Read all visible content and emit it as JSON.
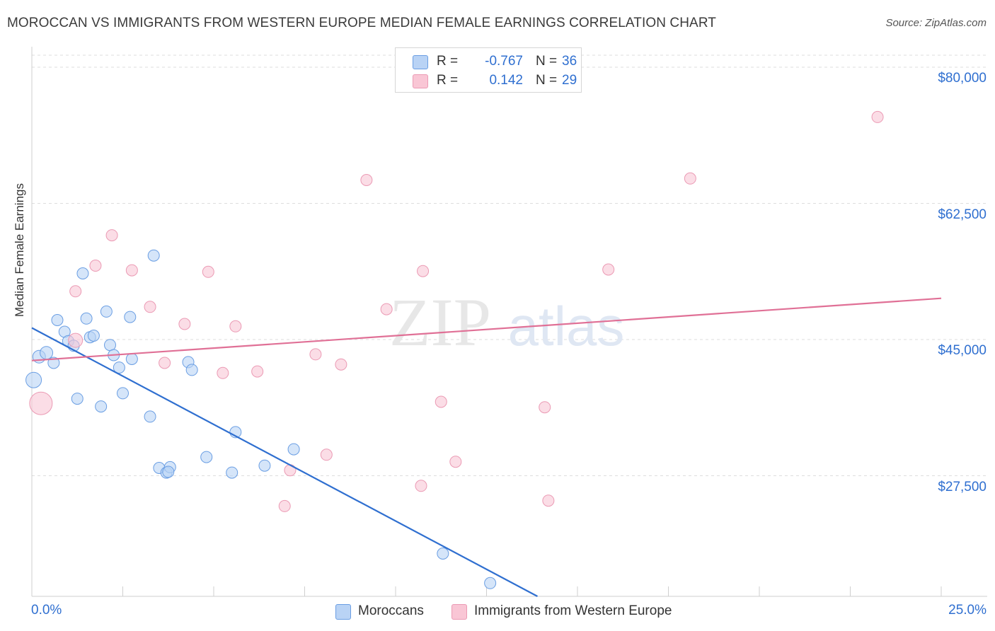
{
  "title": "MOROCCAN VS IMMIGRANTS FROM WESTERN EUROPE MEDIAN FEMALE EARNINGS CORRELATION CHART",
  "source": "Source: ZipAtlas.com",
  "watermark": {
    "part1": "ZIP",
    "part2": "atlas"
  },
  "colors": {
    "blue": "#2f6fd0",
    "blue_fill": "#b9d3f5",
    "blue_stroke": "#6a9ee3",
    "pink": "#e07096",
    "pink_fill": "#f9c6d5",
    "pink_stroke": "#eb9ab4",
    "grid": "#dddddd"
  },
  "legend": {
    "rows": [
      {
        "r_label": "R =",
        "r_value": "-0.767",
        "n_label": "N =",
        "n_value": "36"
      },
      {
        "r_label": "R =",
        "r_value": "0.142",
        "n_label": "N =",
        "n_value": "29"
      }
    ]
  },
  "bottom_legend": {
    "series1": "Moroccans",
    "series2": "Immigrants from Western Europe"
  },
  "chart_data": {
    "type": "scatter",
    "title": "MOROCCAN VS IMMIGRANTS FROM WESTERN EUROPE MEDIAN FEMALE EARNINGS CORRELATION CHART",
    "xlabel": "",
    "ylabel": "Median Female Earnings",
    "xlim": [
      0,
      25
    ],
    "ylim": [
      12000,
      83000
    ],
    "x_tick_labels": [
      "0.0%",
      "25.0%"
    ],
    "y_ticks": [
      27500,
      45000,
      62500,
      80000
    ],
    "y_tick_labels": [
      "$27,500",
      "$45,000",
      "$62,500",
      "$80,000"
    ],
    "series": [
      {
        "name": "Moroccans",
        "color": "blue",
        "trend": {
          "x": [
            0,
            13.9
          ],
          "y": [
            46500,
            12000
          ]
        },
        "points": [
          {
            "x": 0.05,
            "y": 39800,
            "r": 11
          },
          {
            "x": 0.2,
            "y": 42800,
            "r": 9
          },
          {
            "x": 0.4,
            "y": 43300,
            "r": 9
          },
          {
            "x": 0.6,
            "y": 42000,
            "r": 8
          },
          {
            "x": 0.7,
            "y": 47500,
            "r": 8
          },
          {
            "x": 0.9,
            "y": 46000,
            "r": 8
          },
          {
            "x": 1.0,
            "y": 44800,
            "r": 8
          },
          {
            "x": 1.15,
            "y": 44200,
            "r": 8
          },
          {
            "x": 1.25,
            "y": 37400,
            "r": 8
          },
          {
            "x": 1.4,
            "y": 53500,
            "r": 8
          },
          {
            "x": 1.5,
            "y": 47700,
            "r": 8
          },
          {
            "x": 1.6,
            "y": 45300,
            "r": 8
          },
          {
            "x": 1.7,
            "y": 45500,
            "r": 8
          },
          {
            "x": 1.9,
            "y": 36400,
            "r": 8
          },
          {
            "x": 2.05,
            "y": 48600,
            "r": 8
          },
          {
            "x": 2.15,
            "y": 44300,
            "r": 8
          },
          {
            "x": 2.25,
            "y": 43000,
            "r": 8
          },
          {
            "x": 2.4,
            "y": 41400,
            "r": 8
          },
          {
            "x": 2.5,
            "y": 38100,
            "r": 8
          },
          {
            "x": 2.7,
            "y": 47900,
            "r": 8
          },
          {
            "x": 2.75,
            "y": 42500,
            "r": 8
          },
          {
            "x": 3.25,
            "y": 35100,
            "r": 8
          },
          {
            "x": 3.35,
            "y": 55800,
            "r": 8
          },
          {
            "x": 3.5,
            "y": 28500,
            "r": 8
          },
          {
            "x": 3.7,
            "y": 27900,
            "r": 8
          },
          {
            "x": 3.8,
            "y": 28600,
            "r": 8
          },
          {
            "x": 4.3,
            "y": 42100,
            "r": 8
          },
          {
            "x": 4.4,
            "y": 41100,
            "r": 8
          },
          {
            "x": 4.8,
            "y": 29900,
            "r": 8
          },
          {
            "x": 5.5,
            "y": 27900,
            "r": 8
          },
          {
            "x": 5.6,
            "y": 33100,
            "r": 8
          },
          {
            "x": 6.4,
            "y": 28800,
            "r": 8
          },
          {
            "x": 7.2,
            "y": 30900,
            "r": 8
          },
          {
            "x": 11.3,
            "y": 17500,
            "r": 8
          },
          {
            "x": 12.6,
            "y": 13700,
            "r": 8
          },
          {
            "x": 3.75,
            "y": 28000,
            "r": 8
          }
        ]
      },
      {
        "name": "Immigrants from Western Europe",
        "color": "pink",
        "trend": {
          "x": [
            0,
            25
          ],
          "y": [
            42300,
            50300
          ]
        },
        "points": [
          {
            "x": 0.25,
            "y": 36800,
            "r": 16
          },
          {
            "x": 1.2,
            "y": 44900,
            "r": 10
          },
          {
            "x": 1.2,
            "y": 51200,
            "r": 8
          },
          {
            "x": 1.75,
            "y": 54500,
            "r": 8
          },
          {
            "x": 2.2,
            "y": 58400,
            "r": 8
          },
          {
            "x": 2.75,
            "y": 53900,
            "r": 8
          },
          {
            "x": 3.25,
            "y": 49200,
            "r": 8
          },
          {
            "x": 3.65,
            "y": 42000,
            "r": 8
          },
          {
            "x": 4.2,
            "y": 47000,
            "r": 8
          },
          {
            "x": 4.85,
            "y": 53700,
            "r": 8
          },
          {
            "x": 5.25,
            "y": 40700,
            "r": 8
          },
          {
            "x": 5.6,
            "y": 46700,
            "r": 8
          },
          {
            "x": 6.2,
            "y": 40900,
            "r": 8
          },
          {
            "x": 7.1,
            "y": 28200,
            "r": 8
          },
          {
            "x": 6.95,
            "y": 23600,
            "r": 8
          },
          {
            "x": 7.8,
            "y": 43100,
            "r": 8
          },
          {
            "x": 8.1,
            "y": 30200,
            "r": 8
          },
          {
            "x": 8.5,
            "y": 41800,
            "r": 8
          },
          {
            "x": 9.2,
            "y": 65500,
            "r": 8
          },
          {
            "x": 9.75,
            "y": 48900,
            "r": 8
          },
          {
            "x": 10.7,
            "y": 26200,
            "r": 8
          },
          {
            "x": 10.75,
            "y": 53800,
            "r": 8
          },
          {
            "x": 11.25,
            "y": 37000,
            "r": 8
          },
          {
            "x": 11.65,
            "y": 29300,
            "r": 8
          },
          {
            "x": 14.1,
            "y": 36300,
            "r": 8
          },
          {
            "x": 14.2,
            "y": 24300,
            "r": 8
          },
          {
            "x": 15.85,
            "y": 54000,
            "r": 8
          },
          {
            "x": 18.1,
            "y": 65700,
            "r": 8
          },
          {
            "x": 23.25,
            "y": 73600,
            "r": 8
          }
        ]
      }
    ]
  }
}
